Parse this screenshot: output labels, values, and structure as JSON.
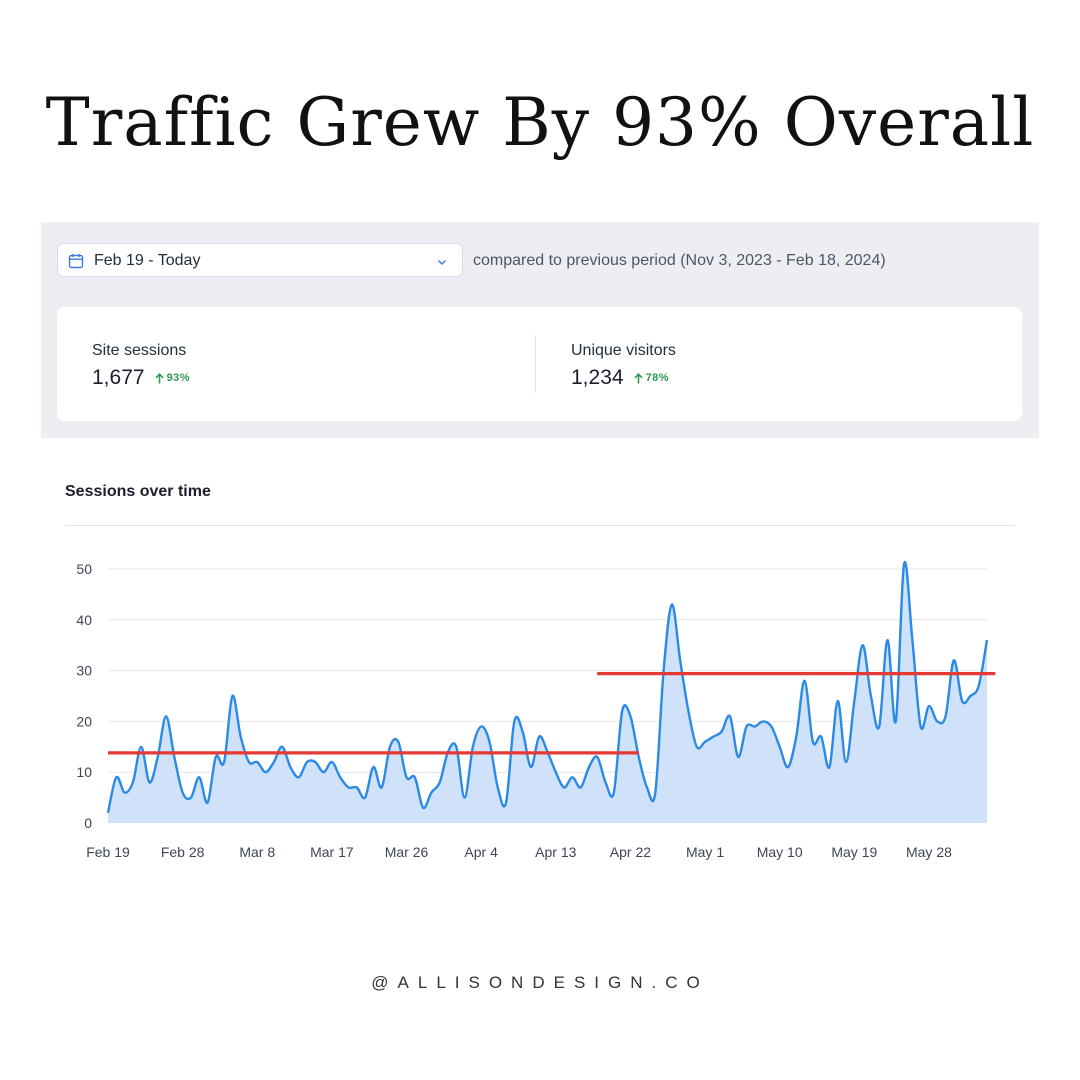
{
  "headline": "Traffic Grew By 93% Overall",
  "filter": {
    "date_range": "Feb 19 - Today",
    "comparison": "compared to previous period (Nov 3, 2023 - Feb 18, 2024)",
    "calendar_icon": "calendar-icon",
    "dropdown_icon": "chevron-down-icon"
  },
  "stats": [
    {
      "label": "Site sessions",
      "value": "1,677",
      "change": "93%",
      "icon": "arrow-up-icon"
    },
    {
      "label": "Unique visitors",
      "value": "1,234",
      "change": "78%",
      "icon": "arrow-up-icon"
    }
  ],
  "colors": {
    "accent": "#2b8ae6",
    "area_fill": "#cfe2f9",
    "trend_line": "#e53935",
    "positive": "#2e9b52"
  },
  "chart_data": {
    "type": "area",
    "title": "Sessions over time",
    "xlabel": "",
    "ylabel": "",
    "x_start": "2024-02-19",
    "x_end": "2024-06-04",
    "x_tick_labels": [
      "Feb 19",
      "Feb 28",
      "Mar 8",
      "Mar 17",
      "Mar 26",
      "Apr 4",
      "Apr 13",
      "Apr 22",
      "May 1",
      "May 10",
      "May 19",
      "May 28"
    ],
    "y_ticks": [
      0,
      10,
      20,
      30,
      40,
      50
    ],
    "ylim": [
      0,
      50
    ],
    "grid": true,
    "series": [
      {
        "values": [
          2,
          9,
          6,
          8,
          15,
          8,
          13,
          21,
          13,
          6,
          5,
          9,
          4,
          13,
          12,
          25,
          17,
          12,
          12,
          10,
          12,
          15,
          11,
          9,
          12,
          12,
          10,
          12,
          9,
          7,
          7,
          5,
          11,
          7,
          15,
          16,
          9,
          9,
          3,
          6,
          8,
          14,
          15,
          5,
          15,
          19,
          16,
          7,
          4,
          20,
          18,
          11,
          17,
          14,
          10,
          7,
          9,
          7,
          11,
          13,
          8,
          6,
          22,
          21,
          13,
          7,
          6,
          30,
          43,
          32,
          22,
          15,
          16,
          17,
          18,
          21,
          13,
          19,
          19,
          20,
          19,
          15,
          11,
          17,
          28,
          16,
          17,
          11,
          24,
          12,
          24,
          35,
          25,
          19,
          36,
          20,
          51,
          36,
          19,
          23,
          20,
          21,
          32,
          24,
          25,
          27,
          36
        ]
      }
    ],
    "annotations": [
      {
        "type": "trend_line",
        "from": "2024-02-19",
        "to": "2024-04-23",
        "y": 13.8
      },
      {
        "type": "trend_line",
        "from": "2024-04-18",
        "to": "2024-06-05",
        "y": 29.4
      }
    ]
  },
  "footer": "@ALLISONDESIGN.CO"
}
